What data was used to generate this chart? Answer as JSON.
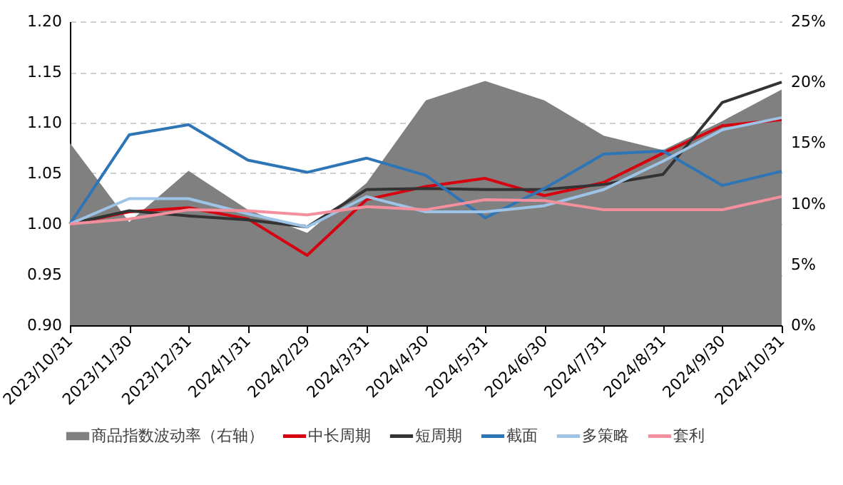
{
  "chart_data": {
    "type": "line",
    "categories": [
      "2023/10/31",
      "2023/11/30",
      "2023/12/31",
      "2024/1/31",
      "2024/2/29",
      "2024/3/31",
      "2024/4/30",
      "2024/5/31",
      "2024/6/30",
      "2024/7/31",
      "2024/8/31",
      "2024/9/30",
      "2024/10/31"
    ],
    "series": [
      {
        "name": "商品指数波动率（右轴）",
        "type": "area",
        "axis": "y2",
        "color": "#808080",
        "values": [
          15.0,
          8.5,
          12.7,
          9.5,
          7.6,
          11.7,
          18.5,
          20.1,
          18.5,
          15.6,
          14.4,
          16.8,
          19.4
        ]
      },
      {
        "name": "中长周期",
        "color": "#d7000f",
        "values": [
          1.0,
          1.012,
          1.016,
          1.005,
          0.969,
          1.024,
          1.037,
          1.045,
          1.028,
          1.041,
          1.07,
          1.097,
          1.103
        ]
      },
      {
        "name": "短周期",
        "color": "#333333",
        "values": [
          1.0,
          1.013,
          1.008,
          1.004,
          0.997,
          1.034,
          1.035,
          1.034,
          1.034,
          1.039,
          1.049,
          1.12,
          1.14
        ]
      },
      {
        "name": "截面",
        "color": "#2e75b6",
        "values": [
          1.0,
          1.088,
          1.098,
          1.063,
          1.051,
          1.065,
          1.048,
          1.006,
          1.035,
          1.069,
          1.072,
          1.038,
          1.052
        ]
      },
      {
        "name": "多策略",
        "color": "#9dc3e6",
        "values": [
          1.0,
          1.025,
          1.025,
          1.01,
          0.997,
          1.027,
          1.012,
          1.012,
          1.018,
          1.034,
          1.062,
          1.093,
          1.105
        ]
      },
      {
        "name": "套利",
        "color": "#f4909e",
        "values": [
          1.0,
          1.005,
          1.014,
          1.013,
          1.009,
          1.017,
          1.014,
          1.024,
          1.023,
          1.014,
          1.014,
          1.014,
          1.027
        ]
      }
    ],
    "ylim": [
      0.9,
      1.2
    ],
    "yticks": [
      {
        "value": 0.9,
        "label": "0.90"
      },
      {
        "value": 0.95,
        "label": "0.95"
      },
      {
        "value": 1.0,
        "label": "1.00"
      },
      {
        "value": 1.05,
        "label": "1.05"
      },
      {
        "value": 1.1,
        "label": "1.10"
      },
      {
        "value": 1.15,
        "label": "1.15"
      },
      {
        "value": 1.2,
        "label": "1.20"
      }
    ],
    "y2lim": [
      0,
      25
    ],
    "y2ticks": [
      {
        "value": 0,
        "label": "0%"
      },
      {
        "value": 5,
        "label": "5%"
      },
      {
        "value": 10,
        "label": "10%"
      },
      {
        "value": 15,
        "label": "15%"
      },
      {
        "value": 20,
        "label": "20%"
      },
      {
        "value": 25,
        "label": "25%"
      }
    ],
    "grid": "y",
    "legend": "bottom",
    "line_style": "solid",
    "marker": "none"
  }
}
